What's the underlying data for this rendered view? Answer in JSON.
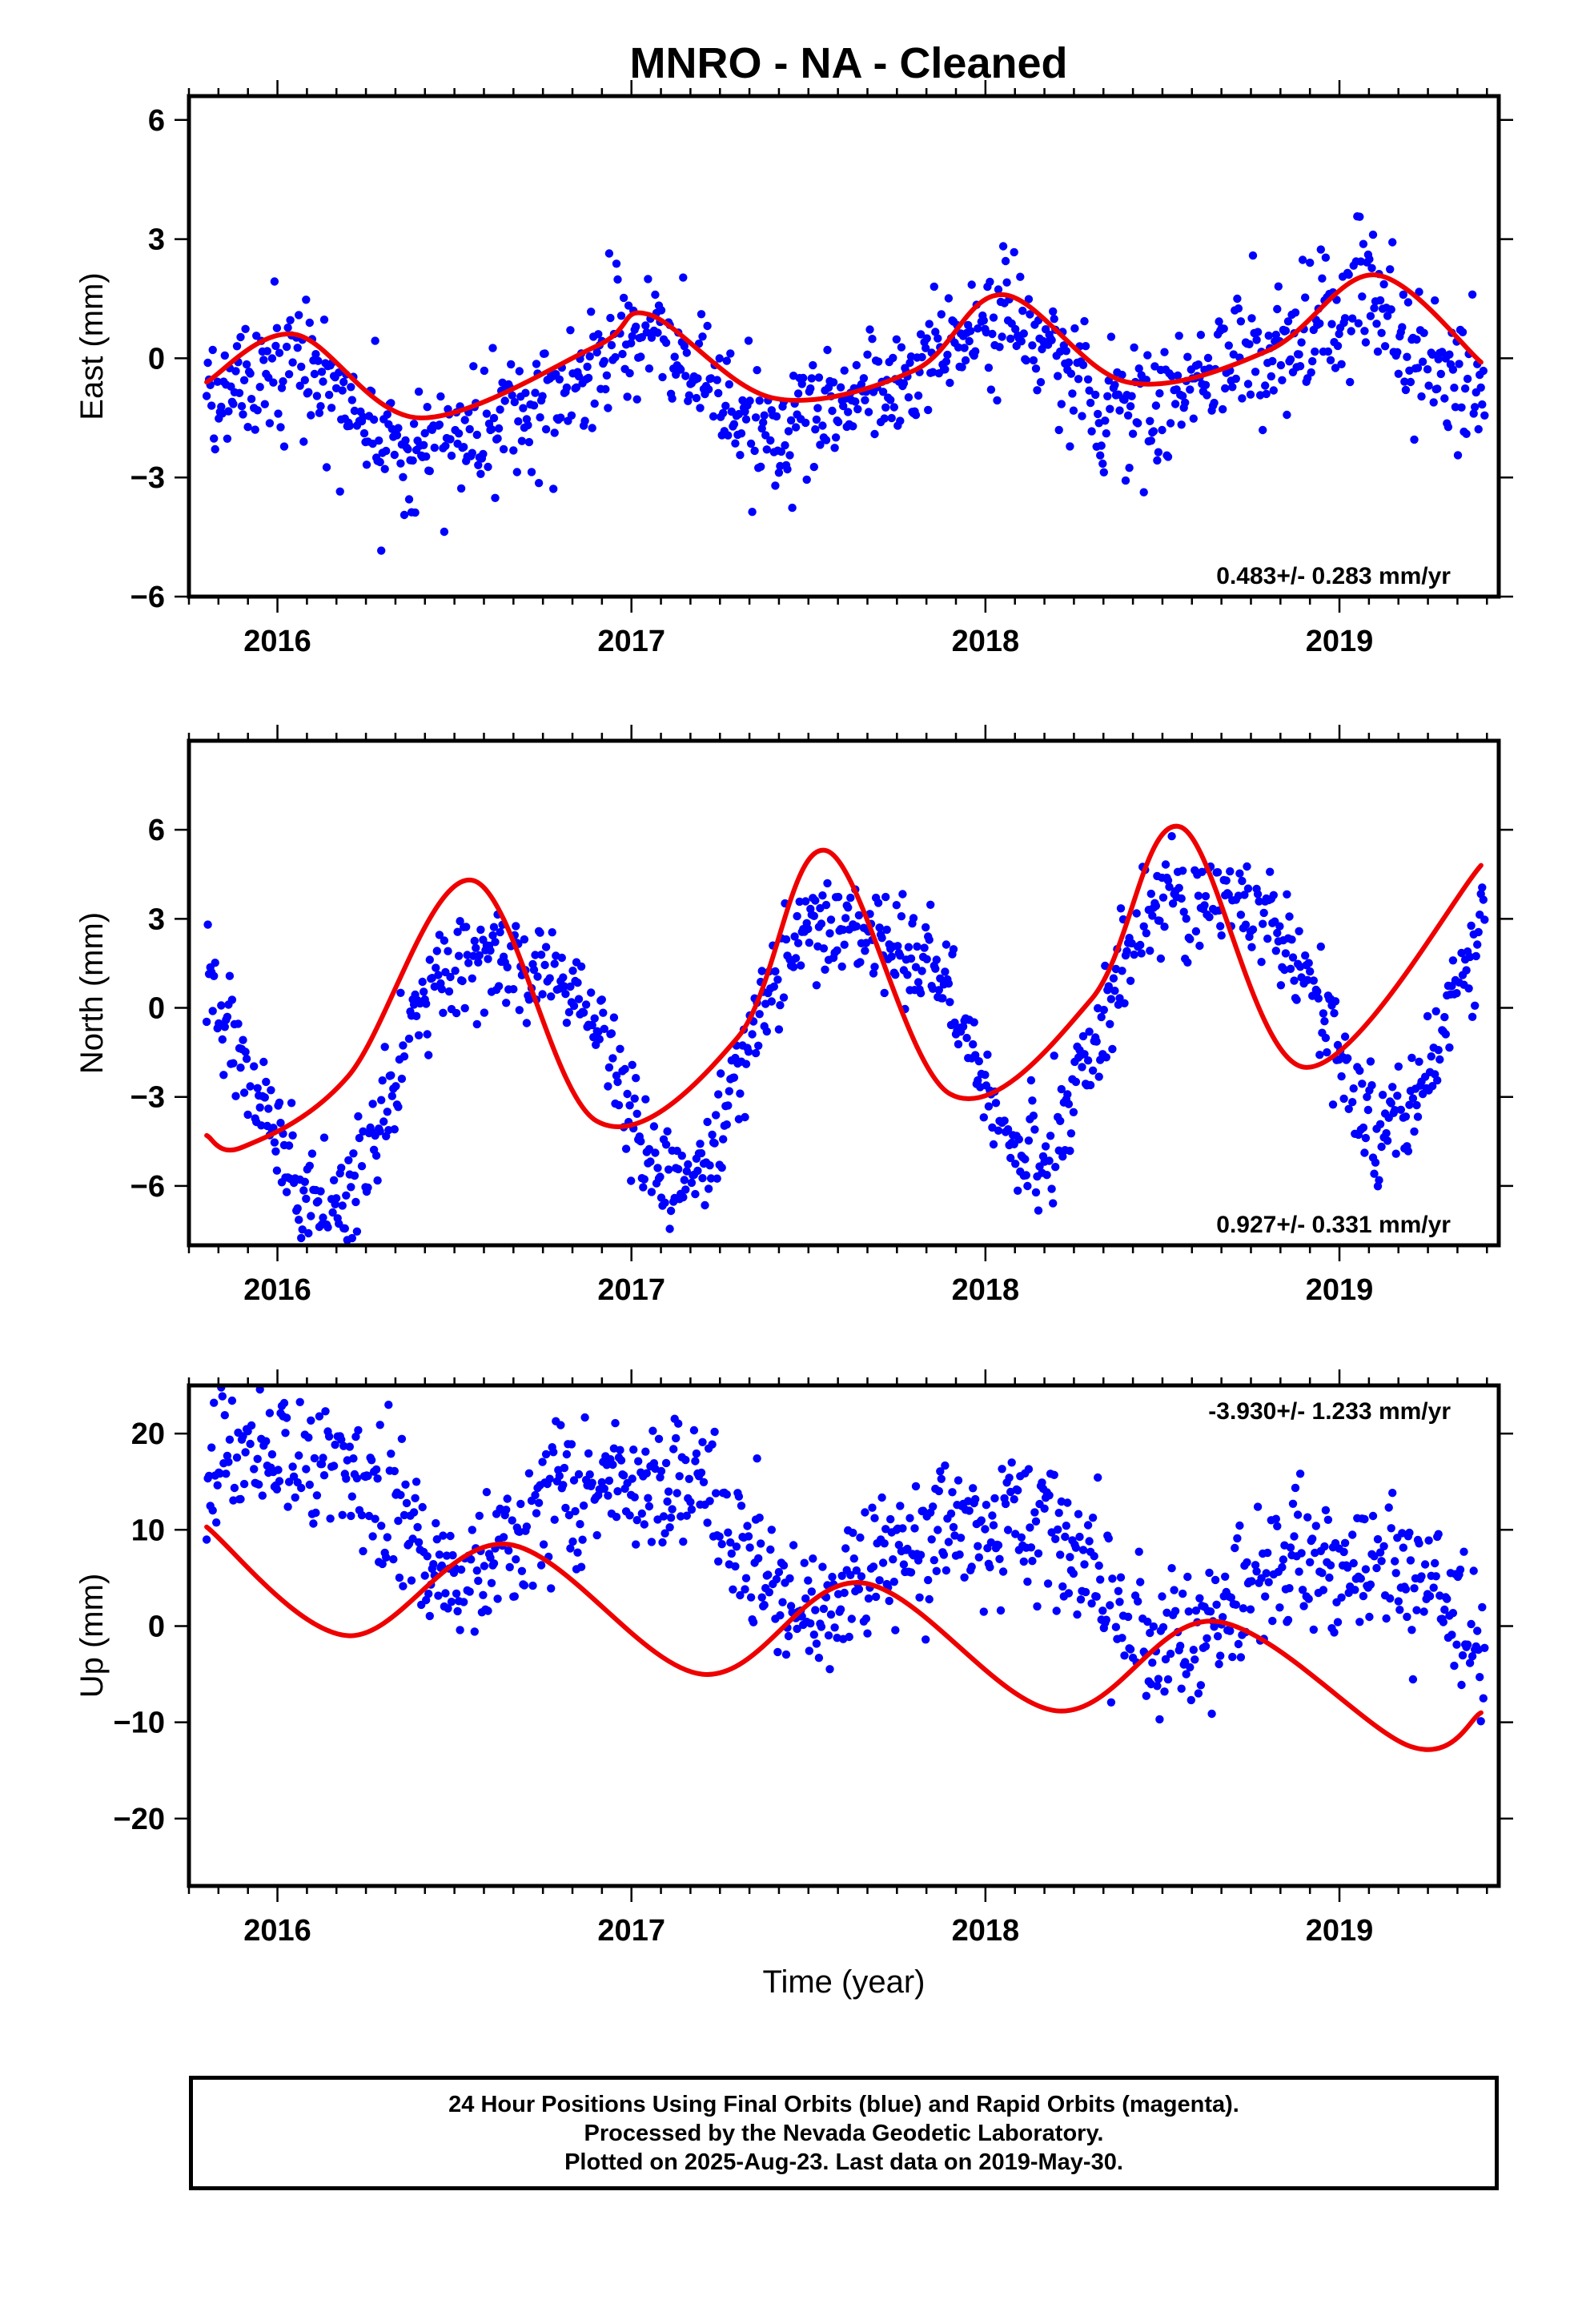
{
  "title": "MNRO  - NA - Cleaned",
  "colors": {
    "points": "#0000ff",
    "fit": "#ee0000",
    "frame": "#000000"
  },
  "chart_data": [
    {
      "type": "scatter",
      "component": "east",
      "ylabel": "East (mm)",
      "xlabel": "",
      "xlim": [
        2015.75,
        2019.45
      ],
      "ylim": [
        -6,
        6.6
      ],
      "xticks": [
        "2016",
        "2017",
        "2018",
        "2019"
      ],
      "yticks": [
        "6",
        "3",
        "0",
        "−3",
        "−6"
      ],
      "ytick_values": [
        6,
        3,
        0,
        -3,
        -6
      ],
      "rate": "0.483+/- 0.283 mm/yr",
      "rate_position": "bottom-right",
      "trend_mm_per_yr": 0.483,
      "offset": -0.65,
      "seasonal": {
        "annual_amp": 1.1,
        "annual_phase": 1.7,
        "semi_amp": 0.3,
        "semi_phase": 0.6
      },
      "scatter_sd": 0.85,
      "fit": [
        [
          2015.8,
          -0.6
        ],
        [
          2016.05,
          0.6
        ],
        [
          2016.4,
          -1.5
        ],
        [
          2016.9,
          0.3
        ],
        [
          2017.05,
          1.1
        ],
        [
          2017.4,
          -1.0
        ],
        [
          2017.8,
          -0.3
        ],
        [
          2018.05,
          1.6
        ],
        [
          2018.4,
          -0.6
        ],
        [
          2018.8,
          0.2
        ],
        [
          2019.1,
          2.1
        ],
        [
          2019.4,
          -0.1
        ]
      ]
    },
    {
      "type": "scatter",
      "component": "north",
      "ylabel": "North (mm)",
      "xlabel": "",
      "xlim": [
        2015.75,
        2019.45
      ],
      "ylim": [
        -8,
        9
      ],
      "xticks": [
        "2016",
        "2017",
        "2018",
        "2019"
      ],
      "yticks": [
        "6",
        "3",
        "0",
        "−3",
        "−6"
      ],
      "ytick_values": [
        6,
        3,
        0,
        -3,
        -6
      ],
      "rate": "0.927+/- 0.331 mm/yr",
      "rate_position": "bottom-right",
      "trend_mm_per_yr": 0.927,
      "offset": -0.5,
      "seasonal": {
        "annual_amp": 4.0,
        "annual_phase": 3.9,
        "semi_amp": 1.0,
        "semi_phase": 2.9
      },
      "scatter_sd": 0.9,
      "fit": [
        [
          2015.8,
          -4.3
        ],
        [
          2015.9,
          -4.7
        ],
        [
          2016.2,
          -2.3
        ],
        [
          2016.55,
          4.3
        ],
        [
          2016.9,
          -3.8
        ],
        [
          2017.3,
          -1.0
        ],
        [
          2017.55,
          5.3
        ],
        [
          2017.9,
          -2.9
        ],
        [
          2018.3,
          0.3
        ],
        [
          2018.55,
          6.1
        ],
        [
          2018.9,
          -2.0
        ],
        [
          2019.4,
          4.8
        ]
      ]
    },
    {
      "type": "scatter",
      "component": "up",
      "ylabel": "Up (mm)",
      "xlabel": "Time (year)",
      "xlim": [
        2015.75,
        2019.45
      ],
      "ylim": [
        -27,
        25
      ],
      "xticks": [
        "2016",
        "2017",
        "2018",
        "2019"
      ],
      "yticks": [
        "20",
        "10",
        "0",
        "−10",
        "−20"
      ],
      "ytick_values": [
        20,
        10,
        0,
        -10,
        -20
      ],
      "rate": "-3.930+/- 1.233 mm/yr",
      "rate_position": "top-right",
      "trend_mm_per_yr": -3.93,
      "offset": 8.0,
      "seasonal": {
        "annual_amp": 5.5,
        "annual_phase": 1.4,
        "semi_amp": 1.5,
        "semi_phase": 4.9
      },
      "scatter_sd": 3.6,
      "fit": [
        [
          2015.8,
          10.3
        ],
        [
          2016.2,
          -1.0
        ],
        [
          2016.65,
          8.5
        ],
        [
          2017.2,
          -5.0
        ],
        [
          2017.65,
          4.5
        ],
        [
          2018.2,
          -8.8
        ],
        [
          2018.65,
          0.5
        ],
        [
          2019.2,
          -12.5
        ],
        [
          2019.4,
          -9.0
        ]
      ]
    }
  ],
  "footer": {
    "line1": "24 Hour Positions Using Final Orbits (blue) and Rapid Orbits (magenta).",
    "line2": "Processed by the Nevada Geodetic Laboratory.",
    "line3": "Plotted on 2025-Aug-23. Last data on 2019-May-30."
  }
}
